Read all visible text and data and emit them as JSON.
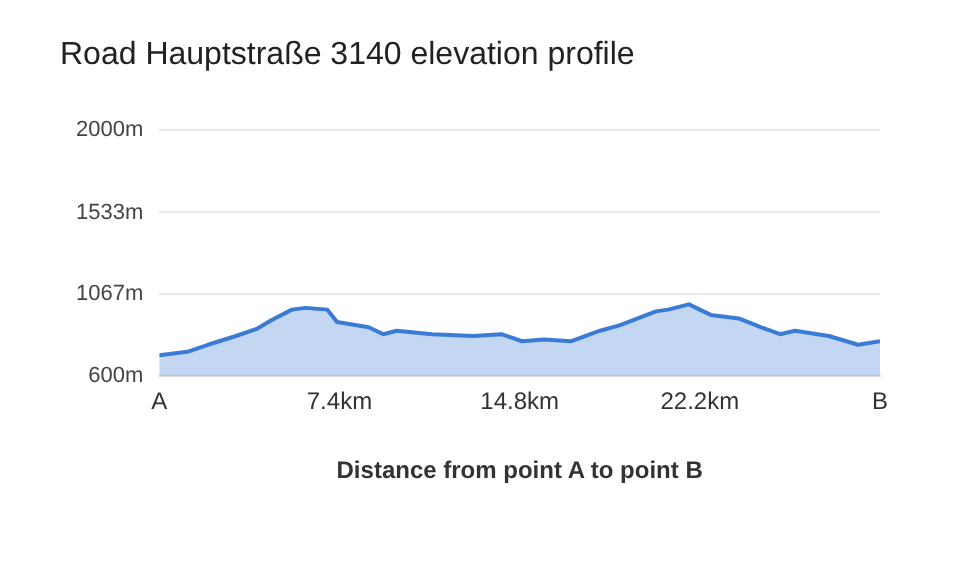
{
  "chart_data": {
    "type": "area",
    "title": "Road Hauptstraße 3140 elevation profile",
    "xlabel": "Distance from point A to point B",
    "x": [
      0,
      1.15,
      2.0,
      3.15,
      4.0,
      4.6,
      5.45,
      6.0,
      6.9,
      7.1,
      7.3,
      8.6,
      9.2,
      9.75,
      11.2,
      12.9,
      14.05,
      14.9,
      15.8,
      16.9,
      18.1,
      18.9,
      20.4,
      20.9,
      21.75,
      22.65,
      23.8,
      24.7,
      25.5,
      26.1,
      27.5,
      28.7,
      29.6
    ],
    "series": [
      {
        "color": "#3a7bd5",
        "values": [
          720,
          740,
          780,
          830,
          870,
          920,
          980,
          990,
          980,
          945,
          910,
          880,
          840,
          860,
          840,
          830,
          840,
          800,
          810,
          800,
          860,
          890,
          970,
          980,
          1010,
          950,
          930,
          880,
          840,
          860,
          830,
          780,
          800
        ]
      }
    ],
    "xlim": [
      0,
      29.6
    ],
    "xticks": [
      {
        "value": 0,
        "label": "A"
      },
      {
        "value": 7.4,
        "label": "7.4km"
      },
      {
        "value": 14.8,
        "label": "14.8km"
      },
      {
        "value": 22.2,
        "label": "22.2km"
      },
      {
        "value": 29.6,
        "label": "B"
      }
    ],
    "ylim": [
      600,
      2000
    ],
    "yticks": [
      {
        "value": 600,
        "label": "600m"
      },
      {
        "value": 1067,
        "label": "1067m"
      },
      {
        "value": 1533,
        "label": "1533m"
      },
      {
        "value": 2000,
        "label": "2000m"
      }
    ],
    "grid": "y",
    "legend": false,
    "marker": "none",
    "line_style": "solid"
  }
}
